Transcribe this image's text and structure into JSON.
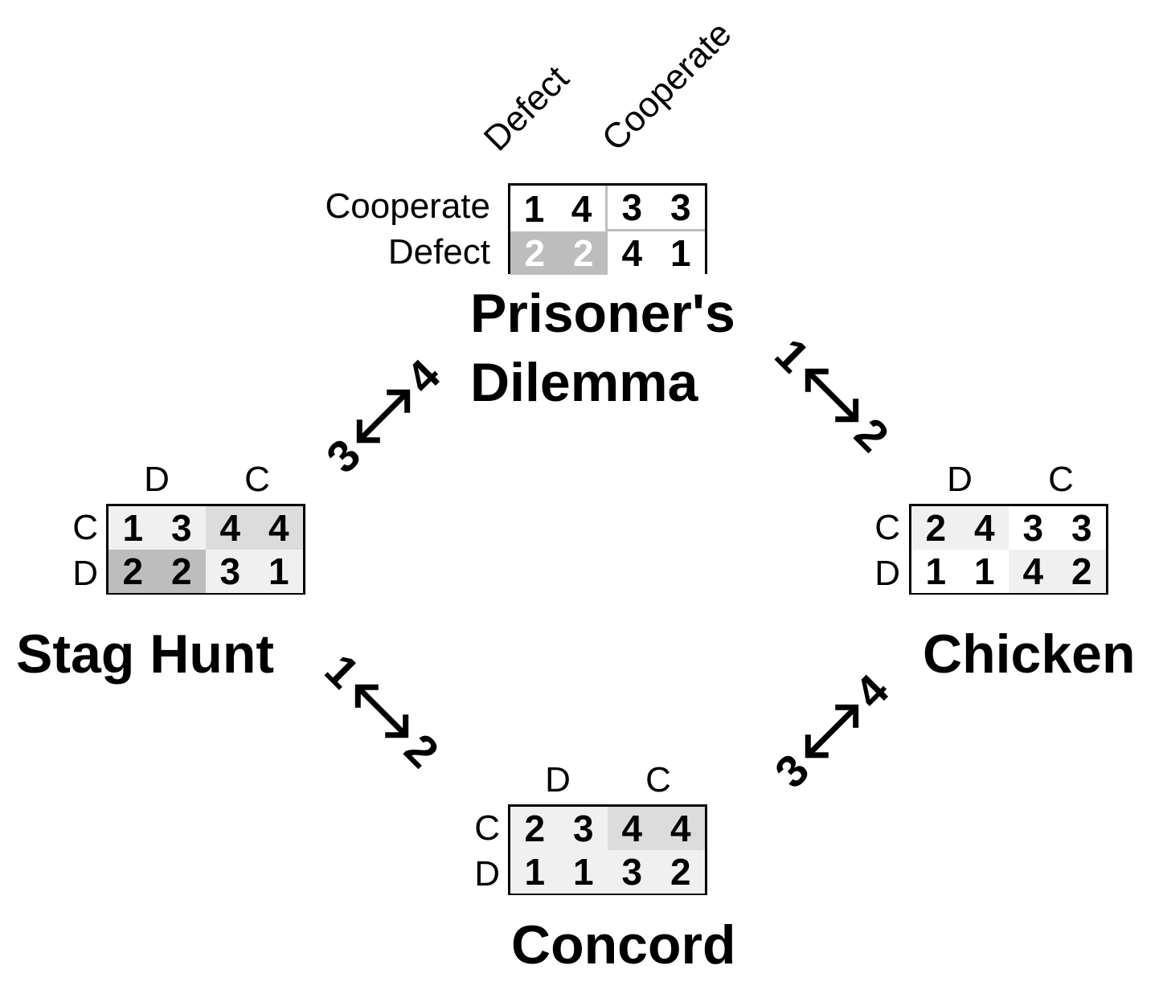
{
  "games": [
    {
      "id": "prisoners-dilemma",
      "title_lines": [
        "Prisoner's",
        "Dilemma"
      ],
      "col_labels": [
        "Defect",
        "Cooperate"
      ],
      "row_labels": [
        "Cooperate",
        "Defect"
      ],
      "cells": [
        [
          {
            "a": "1",
            "b": "4",
            "bg": "#ffffff",
            "fg": "#000000"
          },
          {
            "a": "3",
            "b": "3",
            "bg": "#ffffff",
            "fg": "#000000"
          }
        ],
        [
          {
            "a": "2",
            "b": "2",
            "bg": "#bdbdbd",
            "fg": "#ffffff"
          },
          {
            "a": "4",
            "b": "1",
            "bg": "#ffffff",
            "fg": "#000000"
          }
        ]
      ]
    },
    {
      "id": "stag-hunt",
      "title_lines": [
        "Stag Hunt"
      ],
      "col_labels": [
        "D",
        "C"
      ],
      "row_labels": [
        "C",
        "D"
      ],
      "cells": [
        [
          {
            "a": "1",
            "b": "3",
            "bg": "#f0f0f0",
            "fg": "#000000"
          },
          {
            "a": "4",
            "b": "4",
            "bg": "#dcdcdc",
            "fg": "#000000"
          }
        ],
        [
          {
            "a": "2",
            "b": "2",
            "bg": "#bdbdbd",
            "fg": "#000000"
          },
          {
            "a": "3",
            "b": "1",
            "bg": "#f0f0f0",
            "fg": "#000000"
          }
        ]
      ]
    },
    {
      "id": "chicken",
      "title_lines": [
        "Chicken"
      ],
      "col_labels": [
        "D",
        "C"
      ],
      "row_labels": [
        "C",
        "D"
      ],
      "cells": [
        [
          {
            "a": "2",
            "b": "4",
            "bg": "#f0f0f0",
            "fg": "#000000"
          },
          {
            "a": "3",
            "b": "3",
            "bg": "#ffffff",
            "fg": "#000000"
          }
        ],
        [
          {
            "a": "1",
            "b": "1",
            "bg": "#ffffff",
            "fg": "#000000"
          },
          {
            "a": "4",
            "b": "2",
            "bg": "#f0f0f0",
            "fg": "#000000"
          }
        ]
      ]
    },
    {
      "id": "concord",
      "title_lines": [
        "Concord"
      ],
      "col_labels": [
        "D",
        "C"
      ],
      "row_labels": [
        "C",
        "D"
      ],
      "cells": [
        [
          {
            "a": "2",
            "b": "3",
            "bg": "#f0f0f0",
            "fg": "#000000"
          },
          {
            "a": "4",
            "b": "4",
            "bg": "#dcdcdc",
            "fg": "#000000"
          }
        ],
        [
          {
            "a": "1",
            "b": "1",
            "bg": "#f0f0f0",
            "fg": "#000000"
          },
          {
            "a": "3",
            "b": "2",
            "bg": "#f0f0f0",
            "fg": "#000000"
          }
        ]
      ]
    }
  ],
  "swaps": [
    {
      "id": "pd-stag",
      "from": "3",
      "to": "4"
    },
    {
      "id": "pd-chicken",
      "from": "1",
      "to": "2"
    },
    {
      "id": "stag-concord",
      "from": "1",
      "to": "2"
    },
    {
      "id": "concord-chicken",
      "from": "3",
      "to": "4"
    }
  ]
}
